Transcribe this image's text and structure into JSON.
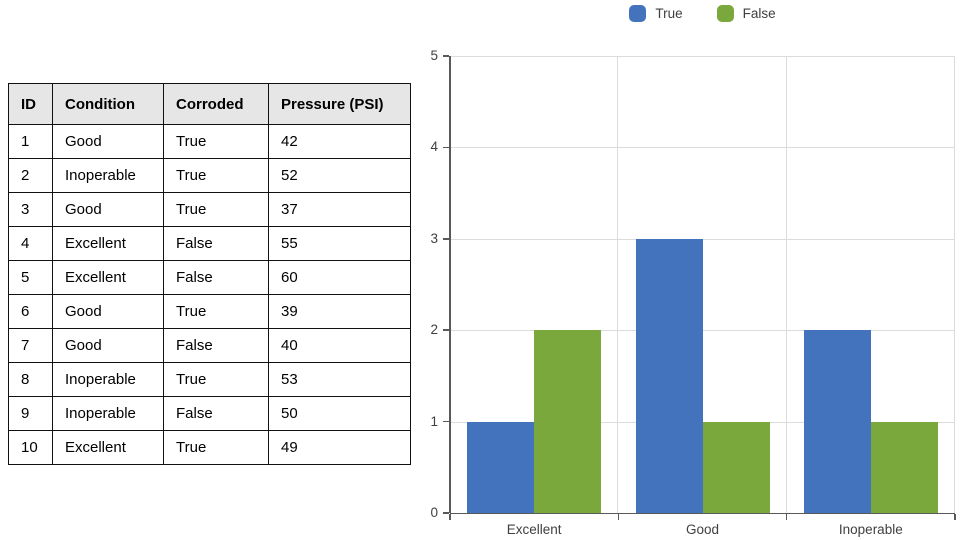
{
  "table": {
    "columns": [
      "ID",
      "Condition",
      "Corroded",
      "Pressure (PSI)"
    ],
    "rows": [
      [
        "1",
        "Good",
        "True",
        "42"
      ],
      [
        "2",
        "Inoperable",
        "True",
        "52"
      ],
      [
        "3",
        "Good",
        "True",
        "37"
      ],
      [
        "4",
        "Excellent",
        "False",
        "55"
      ],
      [
        "5",
        "Excellent",
        "False",
        "60"
      ],
      [
        "6",
        "Good",
        "True",
        "39"
      ],
      [
        "7",
        "Good",
        "False",
        "40"
      ],
      [
        "8",
        "Inoperable",
        "True",
        "53"
      ],
      [
        "9",
        "Inoperable",
        "False",
        "50"
      ],
      [
        "10",
        "Excellent",
        "True",
        "49"
      ]
    ]
  },
  "chart_data": {
    "type": "bar",
    "title": "",
    "xlabel": "",
    "ylabel": "",
    "categories": [
      "Excellent",
      "Good",
      "Inoperable"
    ],
    "series": [
      {
        "name": "True",
        "color": "#4473be",
        "values": [
          1,
          3,
          2
        ]
      },
      {
        "name": "False",
        "color": "#7aa83c",
        "values": [
          2,
          1,
          1
        ]
      }
    ],
    "ylim": [
      0,
      5
    ],
    "yticks": [
      0,
      1,
      2,
      3,
      4,
      5
    ],
    "grid": true,
    "legend_position": "top"
  },
  "colors": {
    "series_true": "#4473be",
    "series_false": "#7aa83c",
    "table_header_bg": "#e7e6e6",
    "gridline": "#dcdcdc",
    "axis": "#595959",
    "chart_text": "#404040"
  }
}
